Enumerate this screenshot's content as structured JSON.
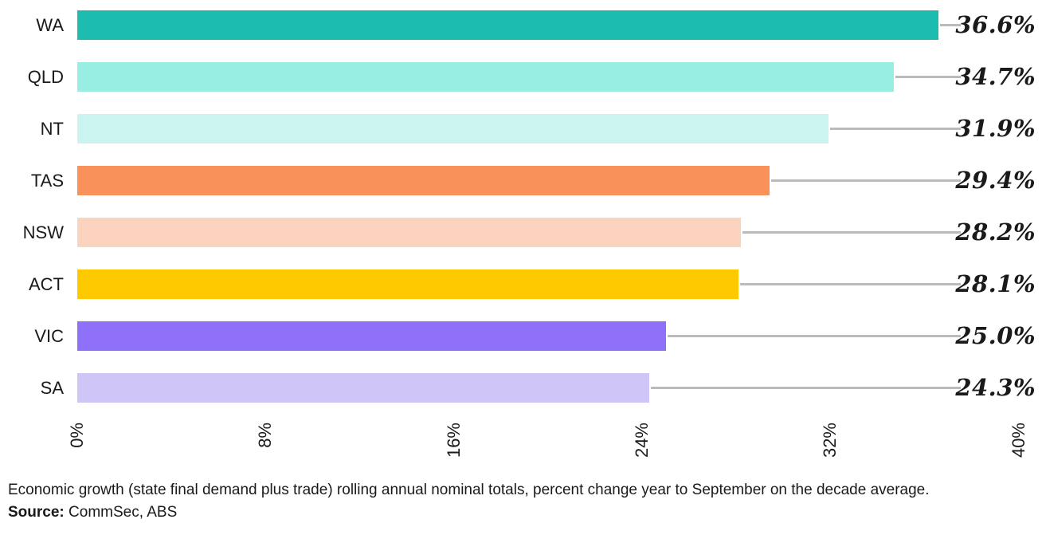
{
  "chart_data": {
    "type": "bar",
    "orientation": "horizontal",
    "title": "",
    "categories": [
      "WA",
      "QLD",
      "NT",
      "TAS",
      "NSW",
      "ACT",
      "VIC",
      "SA"
    ],
    "values": [
      36.6,
      34.7,
      31.9,
      29.4,
      28.2,
      28.1,
      25.0,
      24.3
    ],
    "value_labels": [
      "36.6%",
      "34.7%",
      "31.9%",
      "29.4%",
      "28.2%",
      "28.1%",
      "25.0%",
      "24.3%"
    ],
    "bar_colors": [
      "#1cbcb0",
      "#99eee4",
      "#cbf4f0",
      "#f9915a",
      "#fcd3be",
      "#ffc900",
      "#8e71f8",
      "#d0c5f7"
    ],
    "x_ticks": [
      "0%",
      "8%",
      "16%",
      "24%",
      "32%",
      "40%"
    ],
    "x_tick_values": [
      0,
      8,
      16,
      24,
      32,
      40
    ],
    "xlim": [
      0,
      40
    ],
    "grid": false,
    "legend": "none",
    "connector_color": "#bbbbbb",
    "text_color": "#1a1a1a"
  },
  "caption": {
    "line1": "Economic growth (state final demand plus trade) rolling annual nominal totals, percent change year to September on the decade average.",
    "source_label": "Source:",
    "source_value": " CommSec, ABS"
  }
}
